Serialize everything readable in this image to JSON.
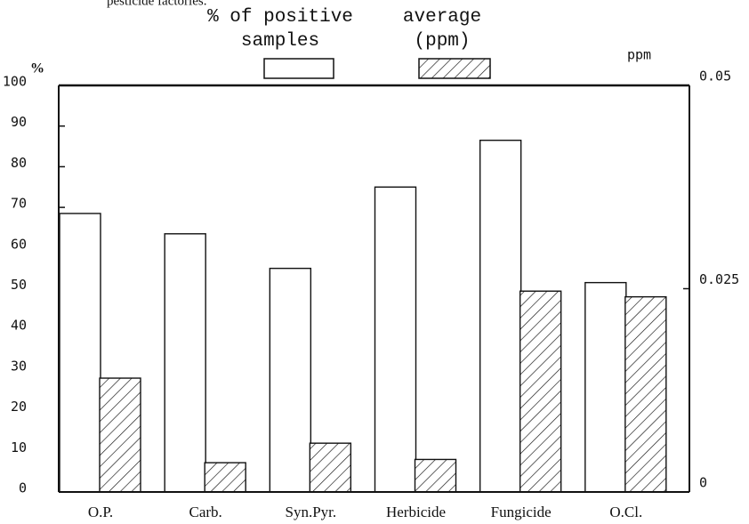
{
  "chart_data": {
    "type": "bar",
    "caption": "pesticide factories.",
    "ylabel": "%",
    "y2label": "ppm",
    "categories": [
      "O.P.",
      "Carb.",
      "Syn.Pyr.",
      "Herbicide",
      "Fungicide",
      "O.Cl."
    ],
    "series": [
      {
        "name": "% of positive samples",
        "color": "#ffffff",
        "values": [
          68.5,
          63.5,
          55,
          75,
          86.5,
          51.5
        ]
      },
      {
        "name": "average (ppm)",
        "color": "hatch",
        "axis": "y2",
        "values": [
          0.014,
          0.0036,
          0.006,
          0.004,
          0.0247,
          0.024
        ]
      }
    ],
    "ylim": [
      0,
      100
    ],
    "yticks": [
      0,
      10,
      20,
      30,
      40,
      50,
      60,
      70,
      80,
      90,
      100
    ],
    "y2lim": [
      0,
      0.05
    ],
    "y2ticks": [
      0,
      0.025,
      0.05
    ]
  }
}
